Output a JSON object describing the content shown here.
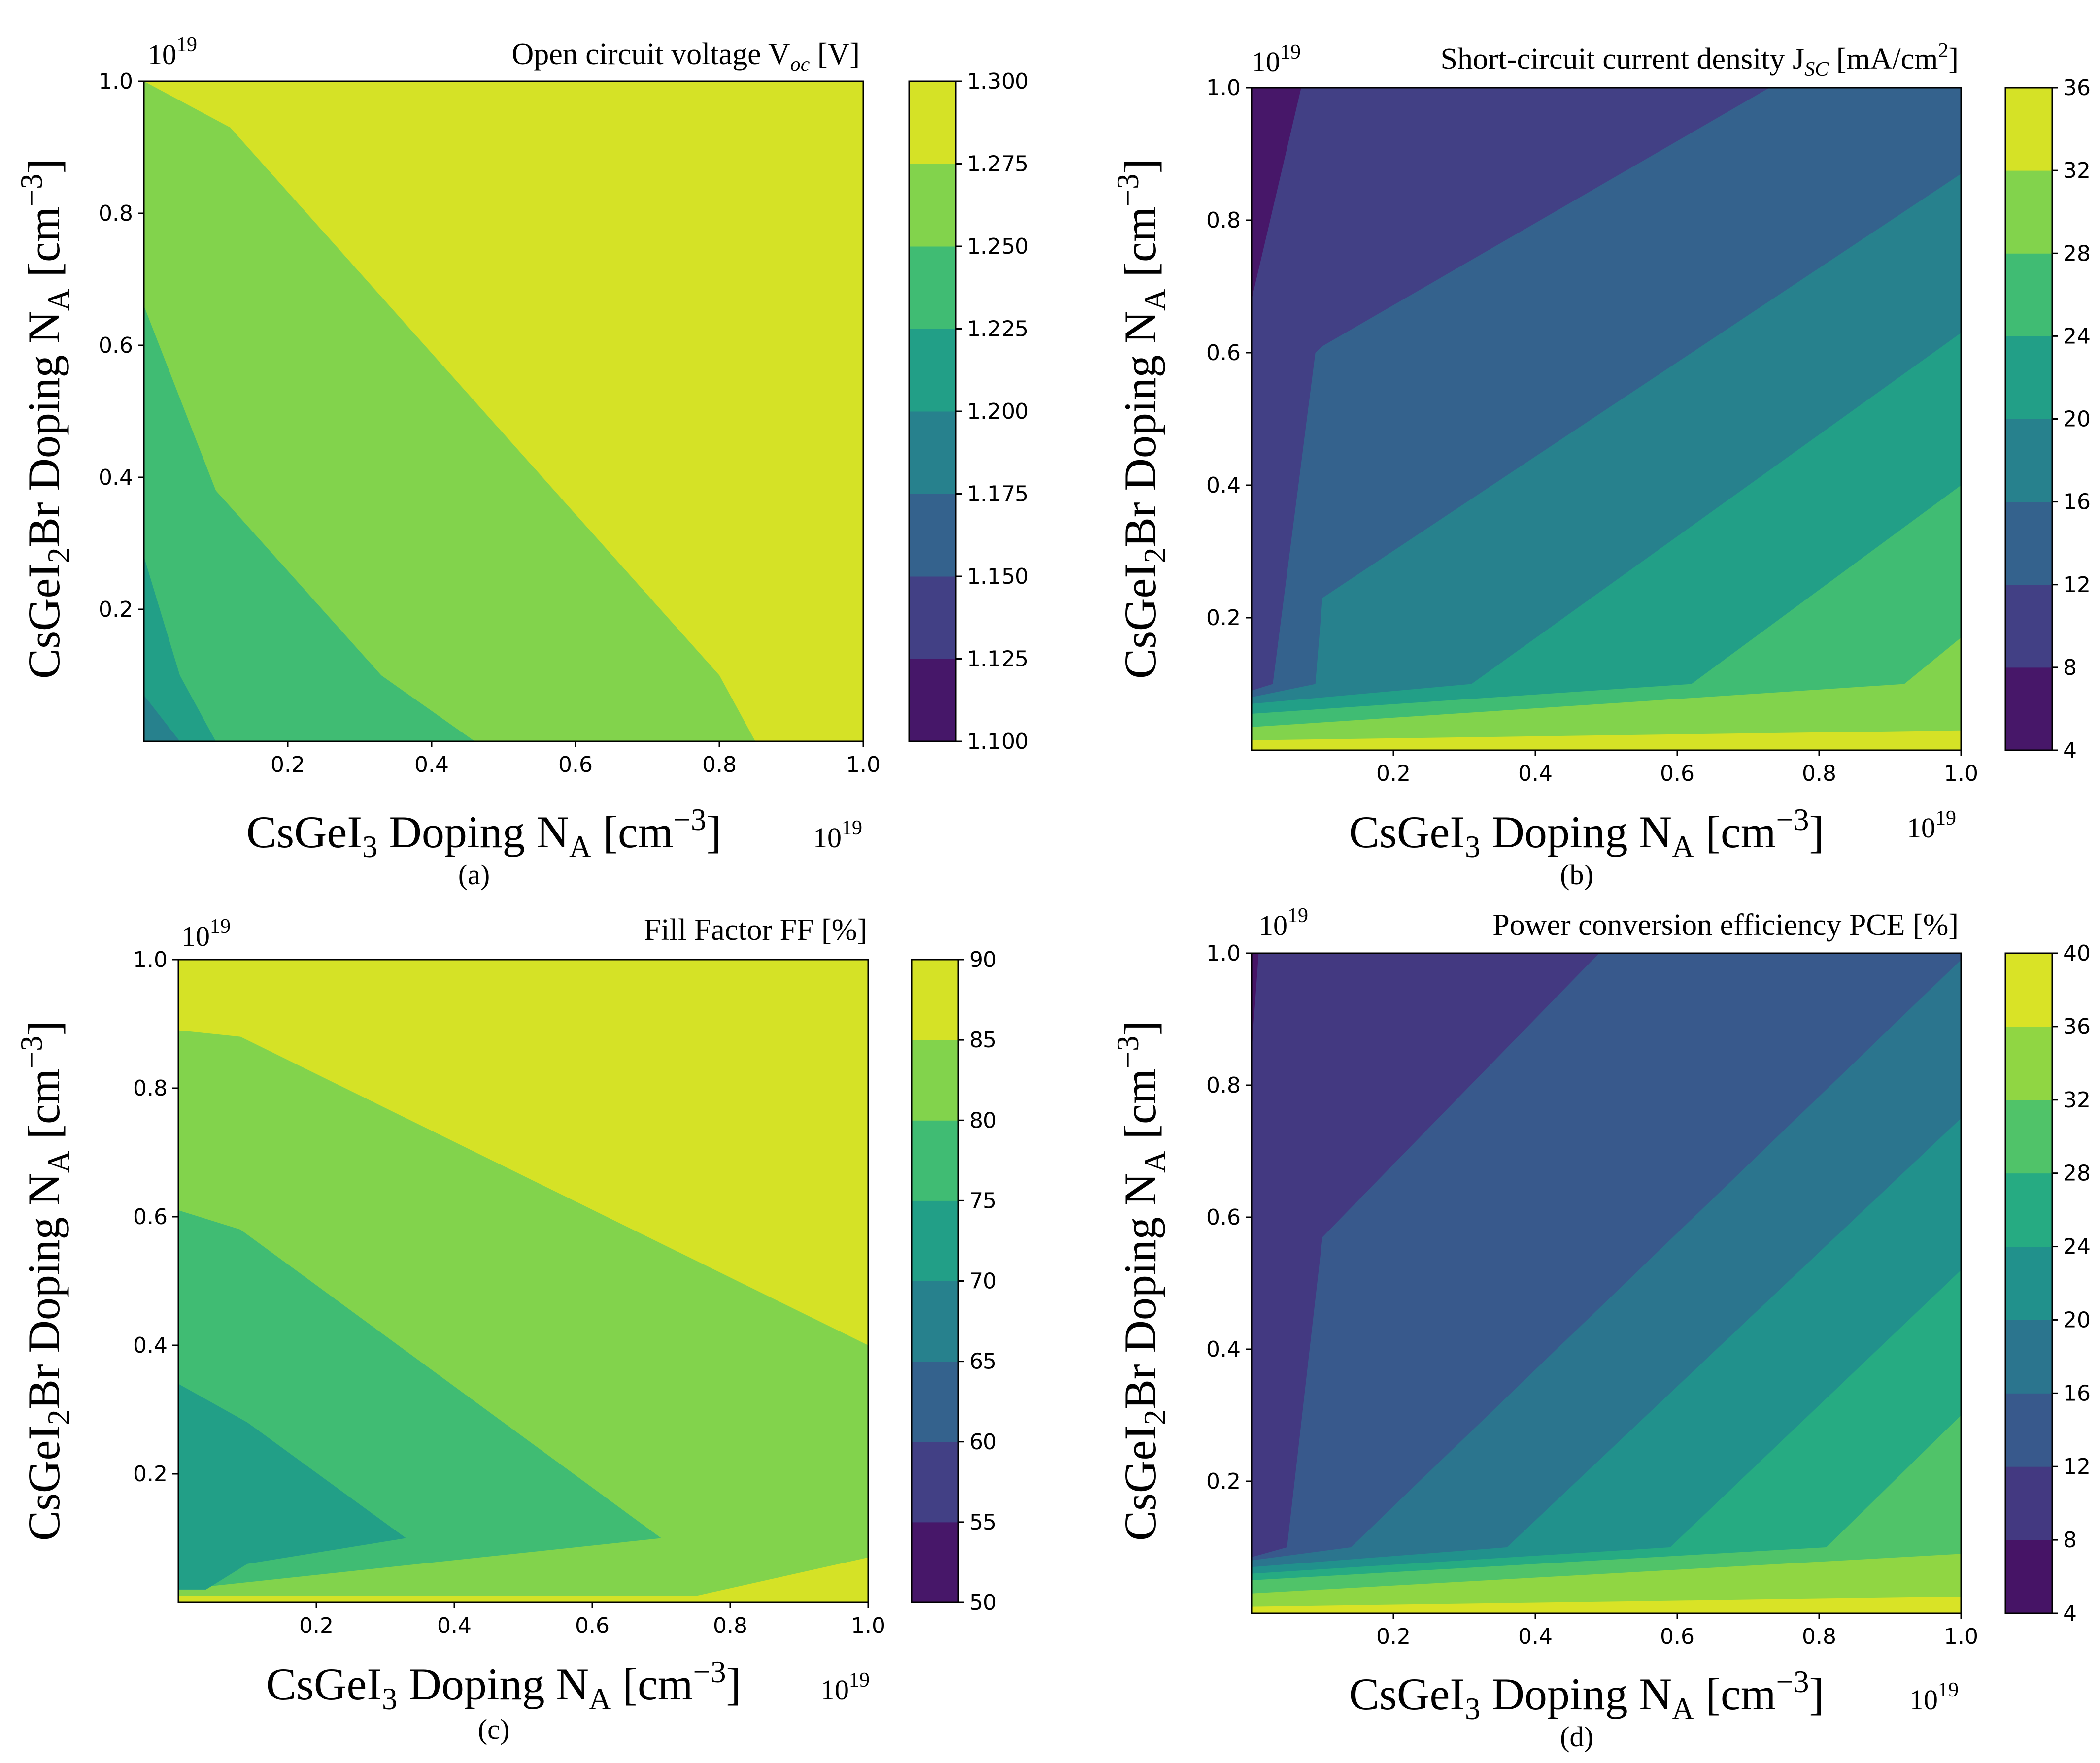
{
  "chart_data": [
    {
      "id": "a",
      "type": "contour",
      "title": "Open circuit voltage V_oc [V]",
      "title_parts": {
        "main": "Open circuit voltage V",
        "sub": "oc",
        "tail": " [V]"
      },
      "caption": "(a)",
      "x_exponent": "19",
      "y_exponent": "19",
      "x_ticks": [
        "0.2",
        "0.4",
        "0.6",
        "0.8",
        "1.0"
      ],
      "y_ticks": [
        "0.2",
        "0.4",
        "0.6",
        "0.8",
        "1.0"
      ],
      "xlim": [
        0,
        1
      ],
      "ylim": [
        0,
        1
      ],
      "colorbar_levels": [
        1.1,
        1.125,
        1.15,
        1.175,
        1.2,
        1.225,
        1.25,
        1.275,
        1.3
      ],
      "colorbar_labels": [
        "1.100",
        "1.125",
        "1.150",
        "1.175",
        "1.200",
        "1.225",
        "1.250",
        "1.275",
        "1.300"
      ],
      "regions": [
        {
          "level": 1.2875,
          "poly": [
            [
              0,
              0
            ],
            [
              1,
              0
            ],
            [
              1,
              1
            ],
            [
              0,
              1
            ]
          ]
        },
        {
          "level": 1.2625,
          "poly": [
            [
              0,
              0
            ],
            [
              0.85,
              0
            ],
            [
              0.8,
              0.1
            ],
            [
              0.12,
              0.93
            ],
            [
              0,
              1
            ]
          ]
        },
        {
          "level": 1.2375,
          "poly": [
            [
              0,
              0
            ],
            [
              0.46,
              0
            ],
            [
              0.33,
              0.1
            ],
            [
              0.1,
              0.38
            ],
            [
              0,
              0.66
            ]
          ]
        },
        {
          "level": 1.2125,
          "poly": [
            [
              0,
              0
            ],
            [
              0.1,
              0
            ],
            [
              0.05,
              0.1
            ],
            [
              0,
              0.28
            ]
          ]
        },
        {
          "level": 1.1875,
          "poly": [
            [
              0,
              0
            ],
            [
              0.05,
              0
            ],
            [
              0,
              0.07
            ]
          ]
        }
      ],
      "xlabel": {
        "pre": "CsGeI",
        "sub": "3",
        "mid": " Doping N",
        "sub2": "A",
        "post": " [cm",
        "sup": "−3",
        "end": "]"
      },
      "ylabel": {
        "pre": "CsGeI",
        "sub": "2",
        "mid": "Br Doping N",
        "sub2": "A",
        "post": " [cm",
        "sup": "−3",
        "end": "]"
      }
    },
    {
      "id": "b",
      "type": "contour",
      "title": "Short-circuit current density J_sc [mA/cm^2]",
      "title_parts": {
        "main": "Short-circuit current density J",
        "sub": "SC",
        "tail": " [mA/cm",
        "sup": "2",
        "end": "]"
      },
      "caption": "(b)",
      "x_exponent": "19",
      "y_exponent": "19",
      "x_ticks": [
        "0.2",
        "0.4",
        "0.6",
        "0.8",
        "1.0"
      ],
      "y_ticks": [
        "0.2",
        "0.4",
        "0.6",
        "0.8",
        "1.0"
      ],
      "xlim": [
        0,
        1
      ],
      "ylim": [
        0,
        1
      ],
      "colorbar_levels": [
        4,
        8,
        12,
        16,
        20,
        24,
        28,
        32,
        36
      ],
      "colorbar_labels": [
        "4",
        "8",
        "12",
        "16",
        "20",
        "24",
        "28",
        "32",
        "36"
      ],
      "regions": [
        {
          "level": 34,
          "poly": [
            [
              0,
              0
            ],
            [
              1,
              0
            ],
            [
              1,
              1
            ],
            [
              0,
              1
            ]
          ]
        },
        {
          "level": 30,
          "poly": [
            [
              0,
              0.015
            ],
            [
              1,
              0.03
            ],
            [
              1,
              1
            ],
            [
              0,
              1
            ]
          ]
        },
        {
          "level": 26,
          "poly": [
            [
              0,
              0.035
            ],
            [
              0.92,
              0.1
            ],
            [
              1,
              0.17
            ],
            [
              1,
              1
            ],
            [
              0,
              1
            ]
          ]
        },
        {
          "level": 22,
          "poly": [
            [
              0,
              0.055
            ],
            [
              0.62,
              0.1
            ],
            [
              1,
              0.4
            ],
            [
              1,
              1
            ],
            [
              0,
              1
            ]
          ]
        },
        {
          "level": 18,
          "poly": [
            [
              0,
              0.07
            ],
            [
              0.31,
              0.1
            ],
            [
              1,
              0.63
            ],
            [
              1,
              1
            ],
            [
              0,
              1
            ]
          ]
        },
        {
          "level": 14,
          "poly": [
            [
              0,
              0.08
            ],
            [
              0.09,
              0.1
            ],
            [
              0.1,
              0.23
            ],
            [
              1,
              0.87
            ],
            [
              1,
              1
            ],
            [
              0,
              1
            ]
          ]
        },
        {
          "level": 10,
          "poly": [
            [
              0,
              0.09
            ],
            [
              0.03,
              0.1
            ],
            [
              0.09,
              0.6
            ],
            [
              0.1,
              0.61
            ],
            [
              0.73,
              1
            ],
            [
              0,
              1
            ]
          ]
        },
        {
          "level": 6,
          "poly": [
            [
              0,
              0.68
            ],
            [
              0.07,
              1
            ],
            [
              0,
              1
            ]
          ]
        }
      ],
      "xlabel": {
        "pre": "CsGeI",
        "sub": "3",
        "mid": " Doping N",
        "sub2": "A",
        "post": " [cm",
        "sup": "−3",
        "end": "]"
      },
      "ylabel": {
        "pre": "CsGeI",
        "sub": "2",
        "mid": "Br Doping N",
        "sub2": "A",
        "post": " [cm",
        "sup": "−3",
        "end": "]"
      }
    },
    {
      "id": "c",
      "type": "contour",
      "title": "Fill Factor FF [%]",
      "title_parts": {
        "main": "Fill Factor FF [%]",
        "sub": "",
        "tail": ""
      },
      "caption": "(c)",
      "x_exponent": "19",
      "y_exponent": "19",
      "x_ticks": [
        "0.2",
        "0.4",
        "0.6",
        "0.8",
        "1.0"
      ],
      "y_ticks": [
        "0.2",
        "0.4",
        "0.6",
        "0.8",
        "1.0"
      ],
      "xlim": [
        0,
        1
      ],
      "ylim": [
        0,
        1
      ],
      "colorbar_levels": [
        50,
        55,
        60,
        65,
        70,
        75,
        80,
        85,
        90
      ],
      "colorbar_labels": [
        "50",
        "55",
        "60",
        "65",
        "70",
        "75",
        "80",
        "85",
        "90"
      ],
      "regions": [
        {
          "level": 87.5,
          "poly": [
            [
              0,
              0
            ],
            [
              1,
              0
            ],
            [
              1,
              1
            ],
            [
              0,
              1
            ]
          ]
        },
        {
          "level": 82.5,
          "poly": [
            [
              0,
              0.01
            ],
            [
              0.75,
              0.01
            ],
            [
              1,
              0.07
            ],
            [
              1,
              0.4
            ],
            [
              0.09,
              0.88
            ],
            [
              0,
              0.89
            ]
          ]
        },
        {
          "level": 77.5,
          "poly": [
            [
              0,
              0.02
            ],
            [
              0.7,
              0.1
            ],
            [
              0.09,
              0.58
            ],
            [
              0,
              0.61
            ]
          ]
        },
        {
          "level": 72.5,
          "poly": [
            [
              0,
              0.02
            ],
            [
              0.04,
              0.02
            ],
            [
              0.1,
              0.06
            ],
            [
              0.33,
              0.1
            ],
            [
              0.1,
              0.28
            ],
            [
              0,
              0.34
            ]
          ]
        }
      ],
      "xlabel": {
        "pre": "CsGeI",
        "sub": "3",
        "mid": " Doping N",
        "sub2": "A",
        "post": " [cm",
        "sup": "−3",
        "end": "]"
      },
      "ylabel": {
        "pre": "CsGeI",
        "sub": "2",
        "mid": "Br Doping N",
        "sub2": "A",
        "post": " [cm",
        "sup": "−3",
        "end": "]"
      }
    },
    {
      "id": "d",
      "type": "contour",
      "title": "Power conversion efficiency PCE [%]",
      "title_parts": {
        "main": "Power conversion efficiency PCE [%]",
        "sub": "",
        "tail": ""
      },
      "caption": "(d)",
      "x_exponent": "19",
      "y_exponent": "19",
      "x_ticks": [
        "0.2",
        "0.4",
        "0.6",
        "0.8",
        "1.0"
      ],
      "y_ticks": [
        "0.2",
        "0.4",
        "0.6",
        "0.8",
        "1.0"
      ],
      "xlim": [
        0,
        1
      ],
      "ylim": [
        0,
        1
      ],
      "colorbar_levels": [
        4,
        8,
        12,
        16,
        20,
        24,
        28,
        32,
        36,
        40
      ],
      "colorbar_labels": [
        "4",
        "8",
        "12",
        "16",
        "20",
        "24",
        "28",
        "32",
        "36",
        "40"
      ],
      "regions": [
        {
          "level": 38,
          "poly": [
            [
              0,
              0
            ],
            [
              1,
              0
            ],
            [
              1,
              1
            ],
            [
              0,
              1
            ]
          ]
        },
        {
          "level": 34,
          "poly": [
            [
              0,
              0.01
            ],
            [
              1,
              0.025
            ],
            [
              1,
              1
            ],
            [
              0,
              1
            ]
          ]
        },
        {
          "level": 30,
          "poly": [
            [
              0,
              0.03
            ],
            [
              1,
              0.09
            ],
            [
              1,
              1
            ],
            [
              0,
              1
            ]
          ]
        },
        {
          "level": 26,
          "poly": [
            [
              0,
              0.05
            ],
            [
              0.81,
              0.1
            ],
            [
              1,
              0.3
            ],
            [
              1,
              1
            ],
            [
              0,
              1
            ]
          ]
        },
        {
          "level": 22,
          "poly": [
            [
              0,
              0.06
            ],
            [
              0.59,
              0.1
            ],
            [
              1,
              0.52
            ],
            [
              1,
              1
            ],
            [
              0,
              1
            ]
          ]
        },
        {
          "level": 18,
          "poly": [
            [
              0,
              0.07
            ],
            [
              0.36,
              0.1
            ],
            [
              1,
              0.75
            ],
            [
              1,
              1
            ],
            [
              0,
              1
            ]
          ]
        },
        {
          "level": 14,
          "poly": [
            [
              0,
              0.08
            ],
            [
              0.14,
              0.1
            ],
            [
              1,
              0.99
            ],
            [
              1,
              1
            ],
            [
              0,
              1
            ]
          ]
        },
        {
          "level": 10,
          "poly": [
            [
              0,
              0.085
            ],
            [
              0.05,
              0.1
            ],
            [
              0.1,
              0.57
            ],
            [
              0.49,
              1
            ],
            [
              0,
              1
            ]
          ]
        },
        {
          "level": 6,
          "poly": [
            [
              0,
              0.85
            ],
            [
              0.01,
              1
            ],
            [
              0,
              1
            ]
          ]
        }
      ],
      "xlabel": {
        "pre": "CsGeI",
        "sub": "3",
        "mid": " Doping N",
        "sub2": "A",
        "post": " [cm",
        "sup": "−3",
        "end": "]"
      },
      "ylabel": {
        "pre": "CsGeI",
        "sub": "2",
        "mid": "Br Doping N",
        "sub2": "A",
        "post": " [cm",
        "sup": "−3",
        "end": "]"
      }
    }
  ],
  "colormap": "viridis",
  "colors": {
    "viridis_start": "#440154",
    "viridis_end": "#fde725"
  }
}
